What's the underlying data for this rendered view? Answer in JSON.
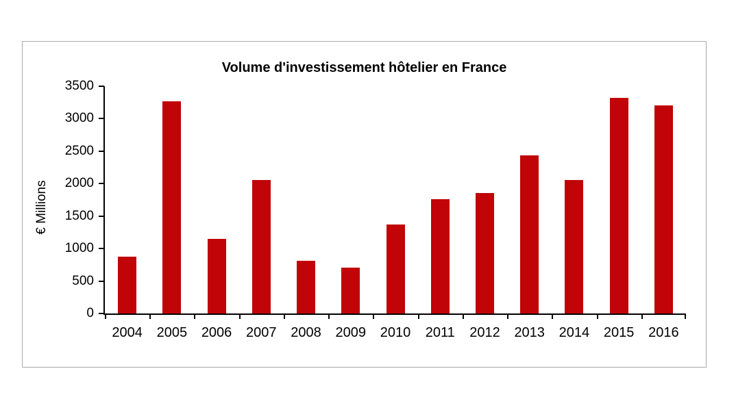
{
  "chart_frame": {
    "border_color": "#a9a9a9",
    "background": "#ffffff"
  },
  "chart_data": {
    "type": "bar",
    "title": "Volume d'investissement hôtelier en France",
    "xlabel": "",
    "ylabel": "€ Millions",
    "categories": [
      "2004",
      "2005",
      "2006",
      "2007",
      "2008",
      "2009",
      "2010",
      "2011",
      "2012",
      "2013",
      "2014",
      "2015",
      "2016"
    ],
    "values": [
      870,
      3270,
      1150,
      2060,
      815,
      710,
      1370,
      1760,
      1860,
      2430,
      2060,
      3320,
      3200
    ],
    "ylim": [
      0,
      3500
    ],
    "ytick_step": 500,
    "ytick_labels": [
      "3500",
      "3000",
      "2500",
      "2000",
      "1500",
      "1000",
      "500",
      "0"
    ],
    "grid": false,
    "legend": "none",
    "bar_color": "#c00407",
    "axis_color": "#000000",
    "text_color": "#000000"
  }
}
